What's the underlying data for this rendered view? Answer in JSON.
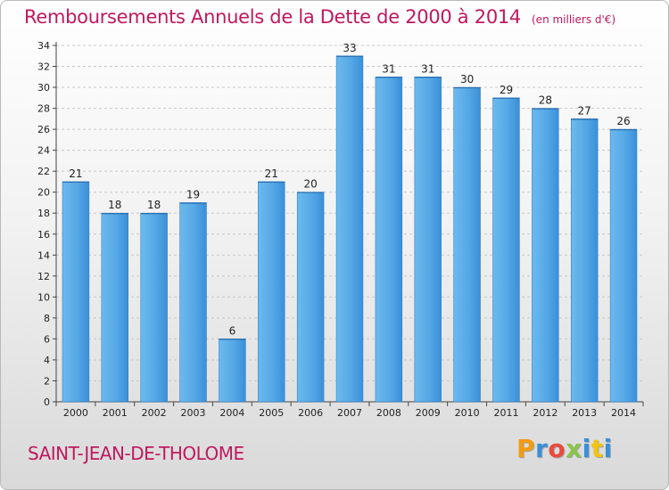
{
  "header": {
    "title": "Remboursements Annuels de la Dette de 2000 à 2014",
    "unit": "(en milliers d'€)"
  },
  "footer": {
    "commune": "SAINT-JEAN-DE-THOLOME",
    "logo_letters": [
      "P",
      "r",
      "o",
      "x",
      "i",
      "t",
      "i"
    ],
    "logo_colors": [
      "#f39c12",
      "#3b8fd8",
      "#e74c3c",
      "#8bc34a",
      "#3b8fd8",
      "#f1c40f",
      "#3b8fd8"
    ]
  },
  "colors": {
    "accent": "#c0185f",
    "bar_light": "#5fb0ea",
    "bar_dark": "#2f80c6",
    "grid": "#c8c8c8"
  },
  "chart_data": {
    "type": "bar",
    "title": "Remboursements Annuels de la Dette de 2000 à 2014",
    "xlabel": "",
    "ylabel": "",
    "categories": [
      "2000",
      "2001",
      "2002",
      "2003",
      "2004",
      "2005",
      "2006",
      "2007",
      "2008",
      "2009",
      "2010",
      "2011",
      "2012",
      "2013",
      "2014"
    ],
    "values": [
      21,
      18,
      18,
      19,
      6,
      21,
      20,
      33,
      31,
      31,
      30,
      29,
      28,
      27,
      26
    ],
    "ylim": [
      0,
      34
    ],
    "yticks": [
      0,
      2,
      4,
      6,
      8,
      10,
      12,
      14,
      16,
      18,
      20,
      22,
      24,
      26,
      28,
      30,
      32,
      34
    ],
    "grid": true,
    "legend": "none"
  }
}
